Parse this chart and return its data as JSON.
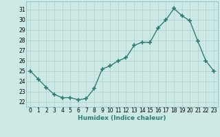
{
  "x": [
    0,
    1,
    2,
    3,
    4,
    5,
    6,
    7,
    8,
    9,
    10,
    11,
    12,
    13,
    14,
    15,
    16,
    17,
    18,
    19,
    20,
    21,
    22,
    23
  ],
  "y": [
    25.0,
    24.2,
    23.4,
    22.7,
    22.4,
    22.4,
    22.2,
    22.3,
    23.3,
    25.2,
    25.5,
    26.0,
    26.3,
    27.5,
    27.8,
    27.8,
    29.2,
    30.0,
    31.1,
    30.4,
    29.9,
    27.9,
    26.0,
    25.0
  ],
  "line_color": "#2e7d6e",
  "marker": "+",
  "marker_size": 4,
  "marker_lw": 1.2,
  "line_width": 1.0,
  "bg_color": "#cce9e5",
  "grid_color": "#b0d4d0",
  "xlabel": "Humidex (Indice chaleur)",
  "xlim": [
    -0.5,
    23.5
  ],
  "ylim": [
    21.5,
    31.8
  ],
  "yticks": [
    22,
    23,
    24,
    25,
    26,
    27,
    28,
    29,
    30,
    31
  ],
  "xticks": [
    0,
    1,
    2,
    3,
    4,
    5,
    6,
    7,
    8,
    9,
    10,
    11,
    12,
    13,
    14,
    15,
    16,
    17,
    18,
    19,
    20,
    21,
    22,
    23
  ],
  "tick_fontsize": 5.5,
  "xlabel_fontsize": 6.5,
  "xlabel_fontweight": "bold"
}
